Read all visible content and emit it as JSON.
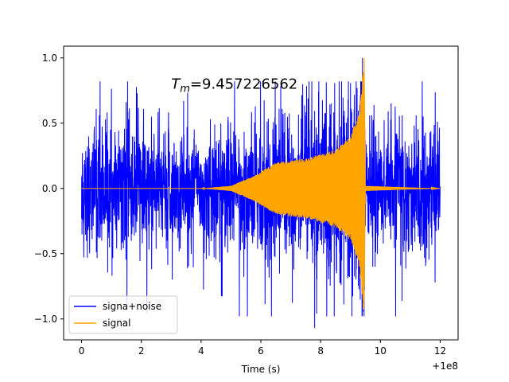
{
  "chart_data": {
    "type": "line",
    "xlabel": "Time (s)",
    "ylabel": "",
    "x_offset_label": "+1e8",
    "xlim": [
      -0.6,
      12.6
    ],
    "ylim": [
      -1.16,
      1.09
    ],
    "x_ticks": [
      0,
      2,
      4,
      6,
      8,
      10,
      12
    ],
    "x_tick_labels": [
      "0",
      "2",
      "4",
      "6",
      "8",
      "10",
      "12"
    ],
    "y_ticks": [
      -1.0,
      -0.5,
      0.0,
      0.5,
      1.0
    ],
    "y_tick_labels": [
      "−1.0",
      "−0.5",
      "0.0",
      "0.5",
      "1.0"
    ],
    "annotation": {
      "symbol": "T",
      "subscript": "m",
      "value_text": "=9.457226562",
      "x": 3.0,
      "y": 0.8
    },
    "legend_position": "lower-left",
    "series": [
      {
        "name": "signa+noise",
        "color": "#0000ff",
        "x_start": 0,
        "x_end": 12,
        "noise_level": 0.6,
        "peak_min": -1.07,
        "peak_max": 1.0,
        "peak_max_x": 9.4
      },
      {
        "name": "signal",
        "color": "#ffa500",
        "x_start": 0,
        "x_end": 12,
        "merger_time": 9.457,
        "envelope_points": [
          [
            0,
            0.0
          ],
          [
            4.0,
            0.0
          ],
          [
            5.0,
            0.02
          ],
          [
            5.8,
            0.1
          ],
          [
            6.5,
            0.2
          ],
          [
            7.5,
            0.23
          ],
          [
            8.5,
            0.3
          ],
          [
            9.0,
            0.4
          ],
          [
            9.3,
            0.6
          ],
          [
            9.457,
            1.0
          ],
          [
            9.5,
            0.02
          ],
          [
            12,
            0.0
          ]
        ],
        "peak_max": 1.0,
        "peak_min": -0.87
      }
    ]
  }
}
